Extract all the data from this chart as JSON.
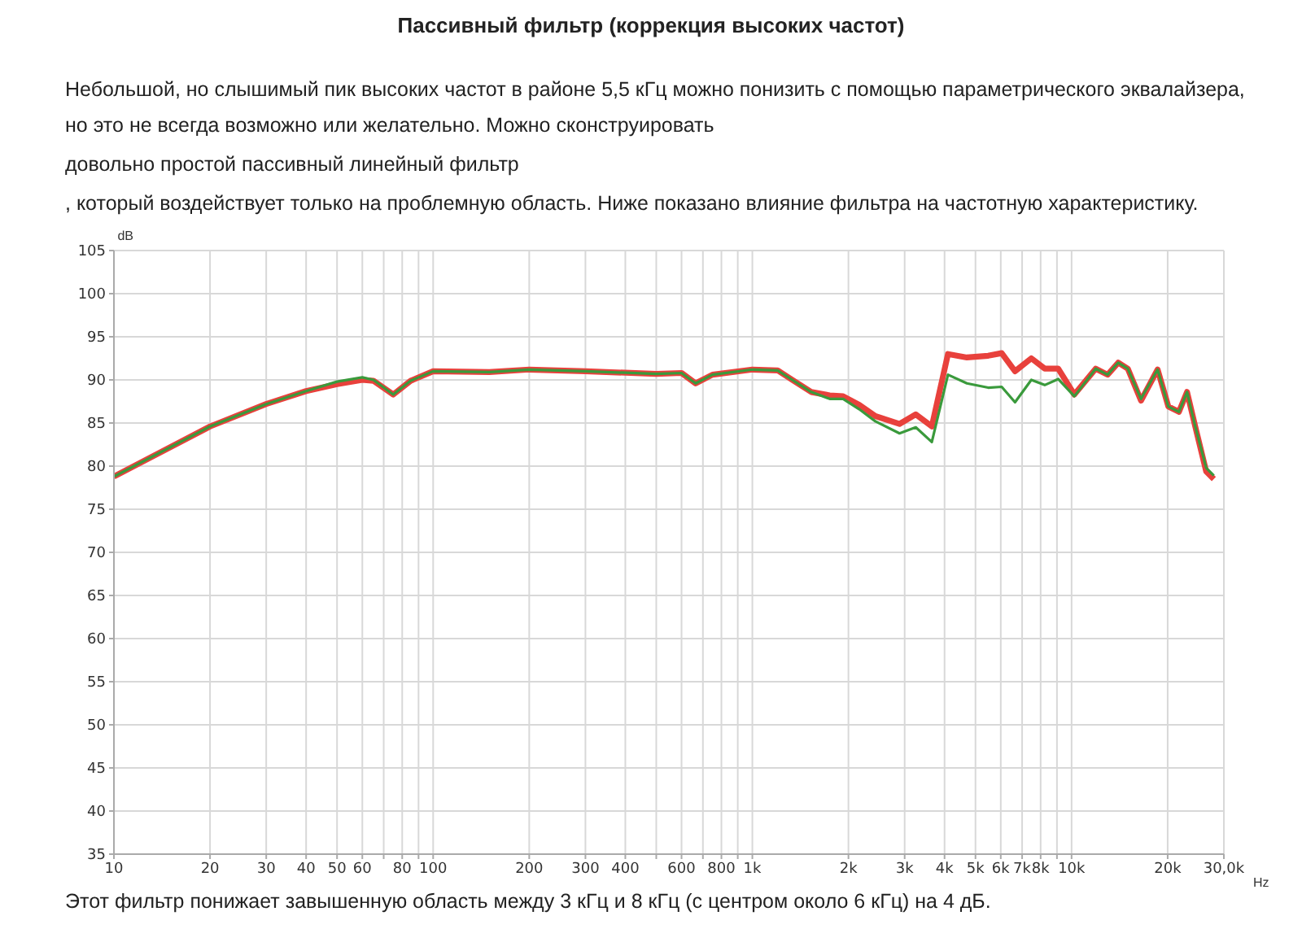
{
  "chart_data": {
    "type": "line",
    "title": "Пассивный фильтр (коррекция высоких частот)",
    "subtitle": "Небольшой, но слышимый пик высоких частот в районе 5,5 кГц можно понизить с помощью параметрического эквалайзера, но это не всегда возможно или желательно. Можно сконструировать",
    "annotations": [
      "довольно простой пассивный линейный фильтр",
      ", который воздействует только на проблемную область. Ниже показано влияние фильтра на частотную характеристику.",
      "Этот фильтр понижает завышенную область между 3 кГц и 8 кГц (с центром около 6 кГц) на 4 дБ."
    ],
    "xlabel": "Hz",
    "ylabel": "dB",
    "log": "x",
    "grid": true,
    "marker": "none",
    "line_style": "solid",
    "x": [
      10,
      20,
      30,
      40,
      50,
      60,
      65,
      75,
      85,
      100,
      150,
      200,
      300,
      500,
      600,
      664,
      750,
      1000,
      1200,
      1334,
      1528,
      1747,
      1924,
      2162,
      2428,
      2891,
      3250,
      3649,
      4100,
      4700,
      5480,
      6040,
      6650,
      7480,
      8240,
      9080,
      10200,
      11900,
      12970,
      14000,
      15000,
      16500,
      18600,
      20100,
      21700,
      23000,
      24400,
      26400,
      27900
    ],
    "series": [
      {
        "color": "#e8413c",
        "values": [
          78.8,
          84.6,
          87.2,
          88.7,
          89.5,
          90.0,
          89.9,
          88.3,
          89.9,
          91.0,
          90.9,
          91.2,
          91.0,
          90.7,
          90.8,
          89.6,
          90.6,
          91.2,
          91.1,
          90.0,
          88.6,
          88.2,
          88.1,
          87.1,
          85.8,
          84.9,
          86.0,
          84.6,
          93.0,
          92.6,
          92.8,
          93.1,
          91.0,
          92.5,
          91.3,
          91.3,
          88.3,
          91.3,
          90.6,
          92.0,
          91.3,
          87.6,
          91.2,
          86.9,
          86.3,
          88.6,
          84.6,
          79.4,
          78.5
        ]
      },
      {
        "color": "#3a9a3c",
        "values": [
          78.8,
          84.6,
          87.2,
          88.7,
          89.8,
          90.3,
          90.0,
          88.3,
          89.9,
          91.0,
          90.9,
          91.2,
          91.0,
          90.7,
          90.8,
          89.6,
          90.6,
          91.2,
          91.1,
          90.0,
          88.6,
          87.8,
          87.8,
          86.6,
          85.2,
          83.8,
          84.5,
          82.8,
          90.6,
          89.6,
          89.1,
          89.2,
          87.4,
          90.0,
          89.4,
          90.1,
          88.1,
          91.3,
          90.6,
          92.0,
          91.3,
          87.8,
          91.2,
          86.9,
          86.3,
          88.6,
          84.6,
          79.8,
          78.9
        ]
      }
    ],
    "xlim": [
      10,
      30000
    ],
    "xticks": [
      10,
      20,
      30,
      40,
      50,
      60,
      {
        "value": 70,
        "label": null
      },
      80,
      {
        "value": 90,
        "label": null
      },
      100,
      200,
      300,
      400,
      {
        "value": 500,
        "label": null
      },
      600,
      {
        "value": 700,
        "label": null
      },
      800,
      {
        "value": 900,
        "label": null
      },
      {
        "value": 1000,
        "label": "1k"
      },
      {
        "value": 2000,
        "label": "2k"
      },
      {
        "value": 3000,
        "label": "3k"
      },
      {
        "value": 4000,
        "label": "4k"
      },
      {
        "value": 5000,
        "label": "5k"
      },
      {
        "value": 6000,
        "label": "6k"
      },
      {
        "value": 7000,
        "label": "7k"
      },
      {
        "value": 8000,
        "label": "8k"
      },
      {
        "value": 9000,
        "label": null
      },
      {
        "value": 10000,
        "label": "10k"
      },
      {
        "value": 20000,
        "label": "20k"
      },
      {
        "value": 30000,
        "label": "30,0k"
      }
    ],
    "ylim": [
      35,
      105
    ],
    "yticks": [
      35,
      40,
      45,
      50,
      55,
      60,
      65,
      70,
      75,
      80,
      85,
      90,
      95,
      100,
      105
    ]
  }
}
